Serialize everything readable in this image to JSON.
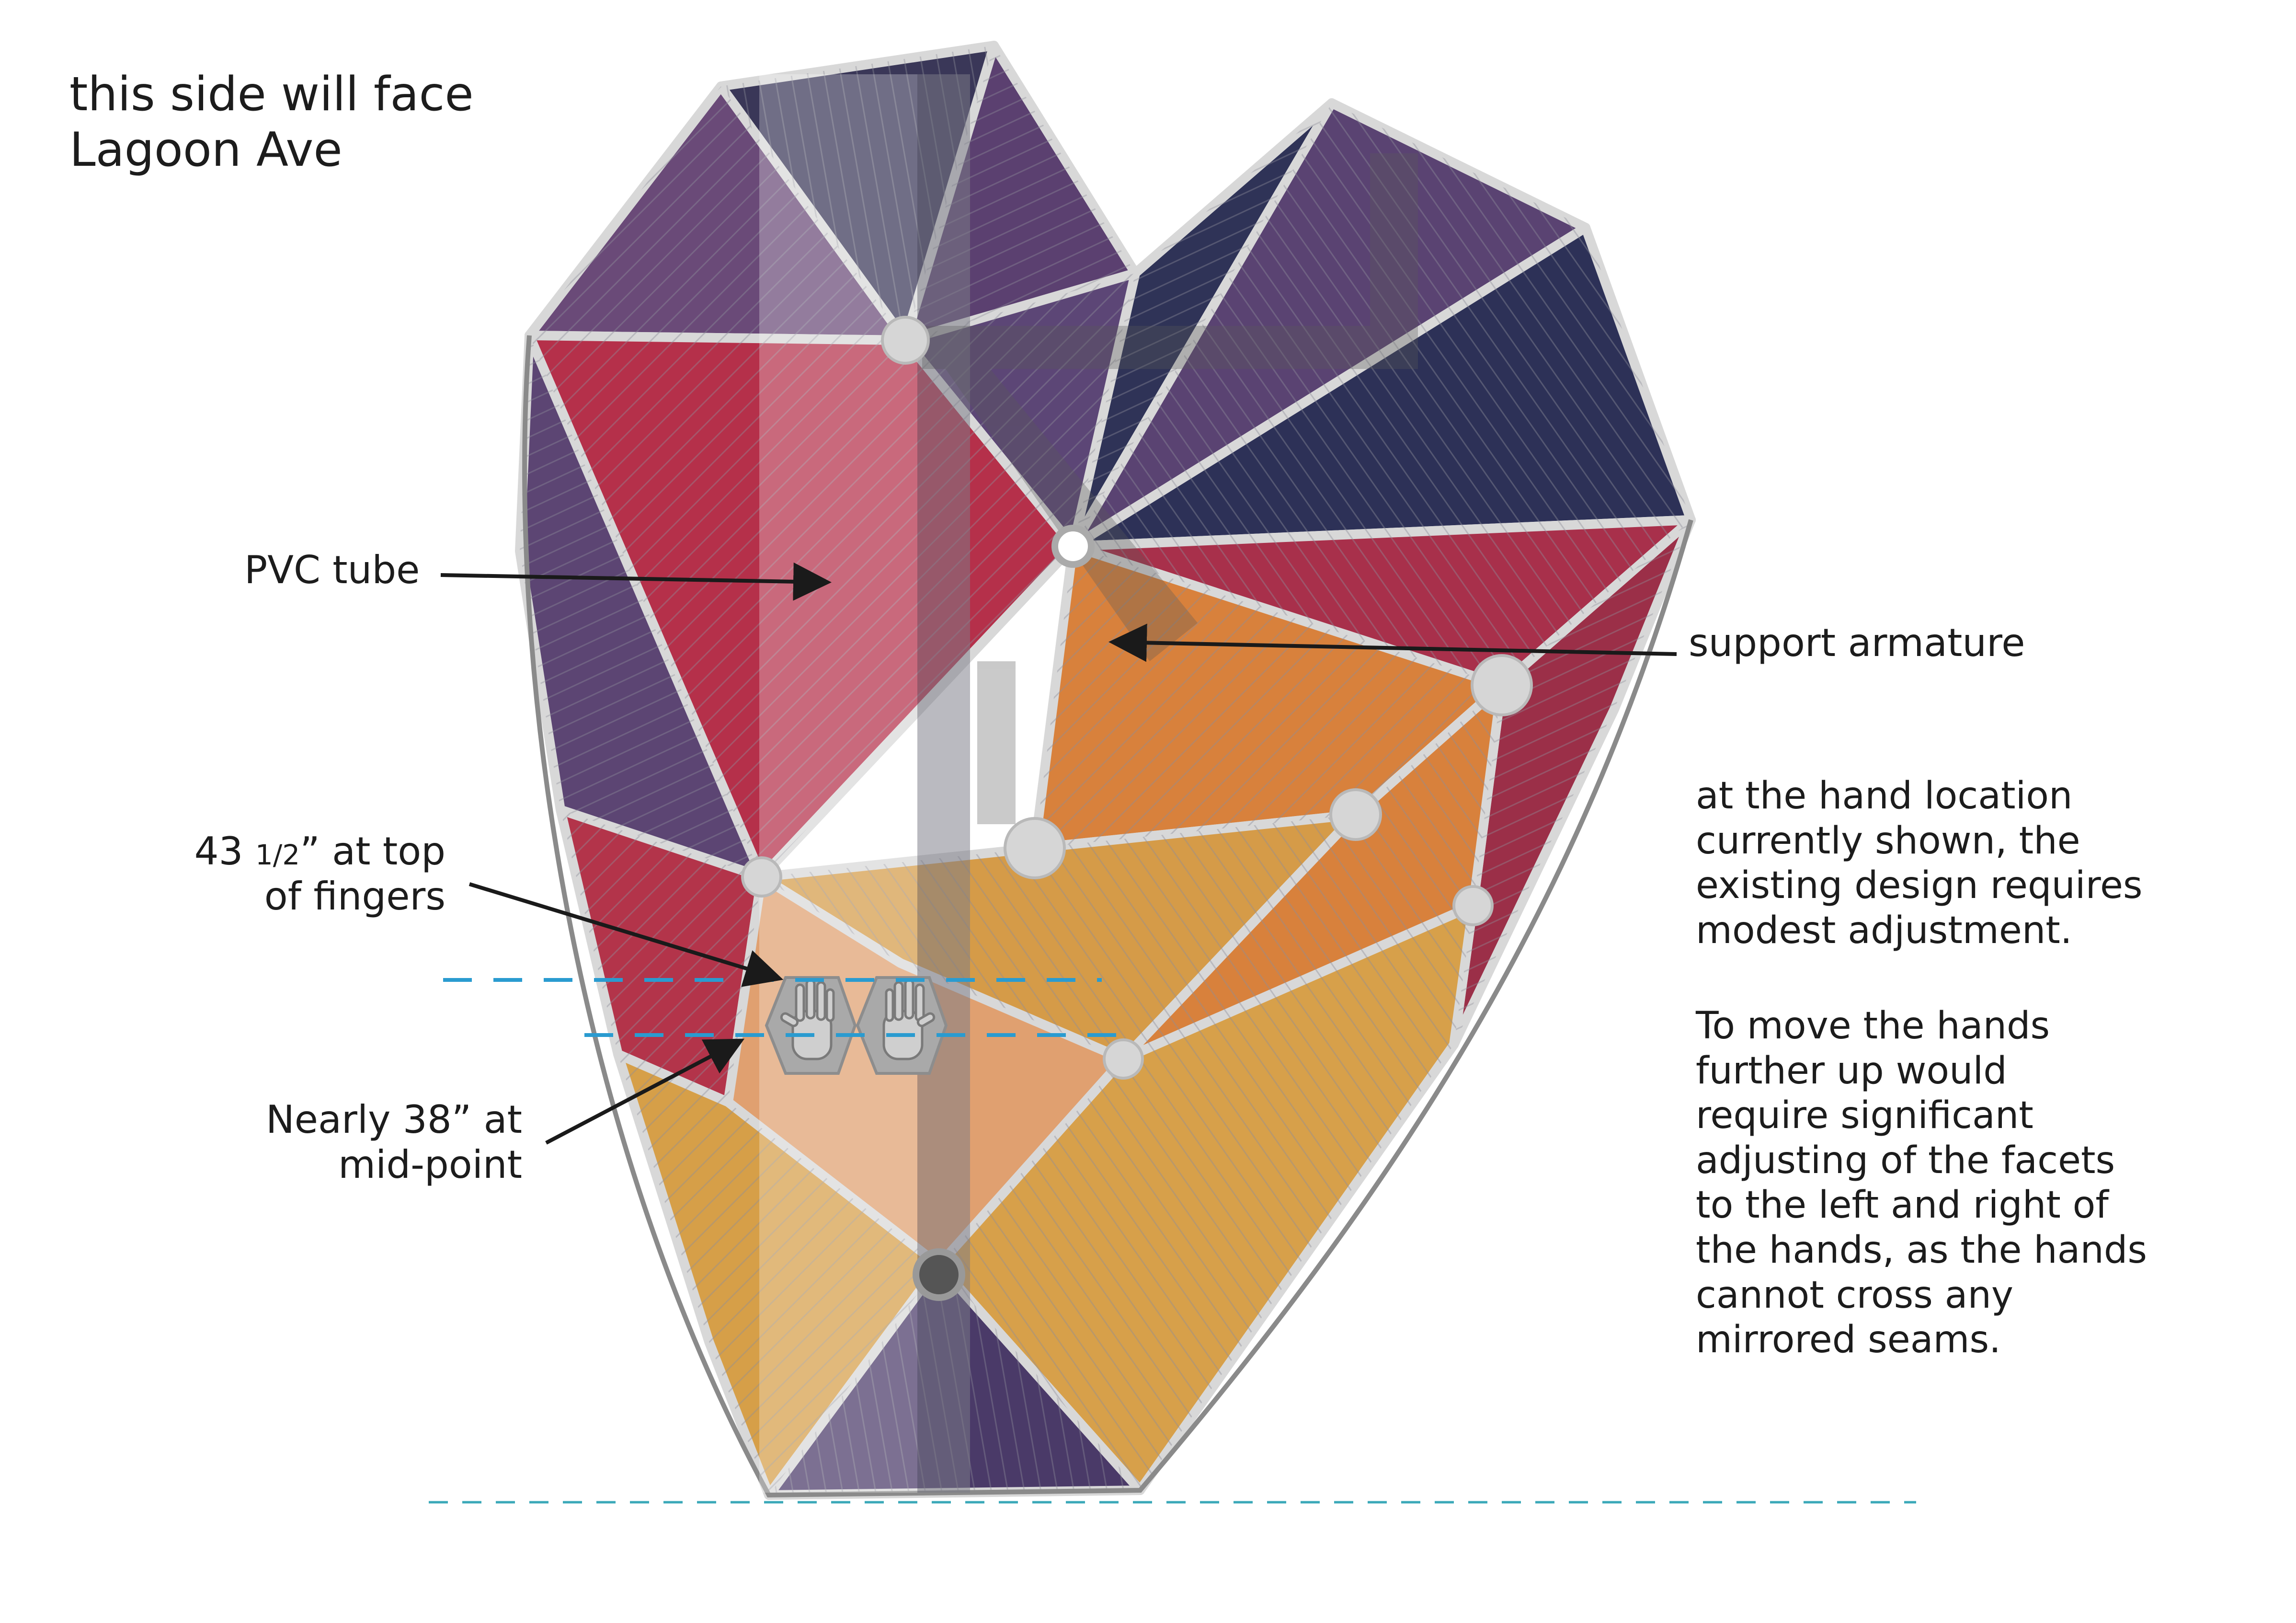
{
  "heading": {
    "line1": "this side will face",
    "line2": "Lagoon Ave"
  },
  "labels": {
    "pvc_tube": "PVC tube",
    "support_armature": "support armature",
    "fingers_top_value": "43",
    "fingers_top_fraction": "1/2",
    "fingers_top_rest": "” at top",
    "fingers_top_line2": "of fingers",
    "midpoint_line1": "Nearly 38” at",
    "midpoint_line2": "mid-point"
  },
  "notes": {
    "note1": [
      "at the hand location",
      "currently shown, the",
      "existing design requires",
      "modest adjustment."
    ],
    "note2": [
      "To move the hands",
      "further up would",
      "require significant",
      "adjusting of the facets",
      "to the left and right of",
      "the hands, as the hands",
      "cannot cross any",
      "mirrored seams."
    ]
  },
  "icons": [
    "left-hand-icon",
    "right-hand-icon",
    "arrow-icon"
  ],
  "colors": {
    "crimson": "#b8324a",
    "purple": "#5e4678",
    "navy": "#2f3357",
    "orange": "#d9823a",
    "gold": "#d9a04a",
    "peach": "#e7b07c",
    "seam": "#d6d6d6",
    "guide_dash": "#2a9bd0"
  }
}
